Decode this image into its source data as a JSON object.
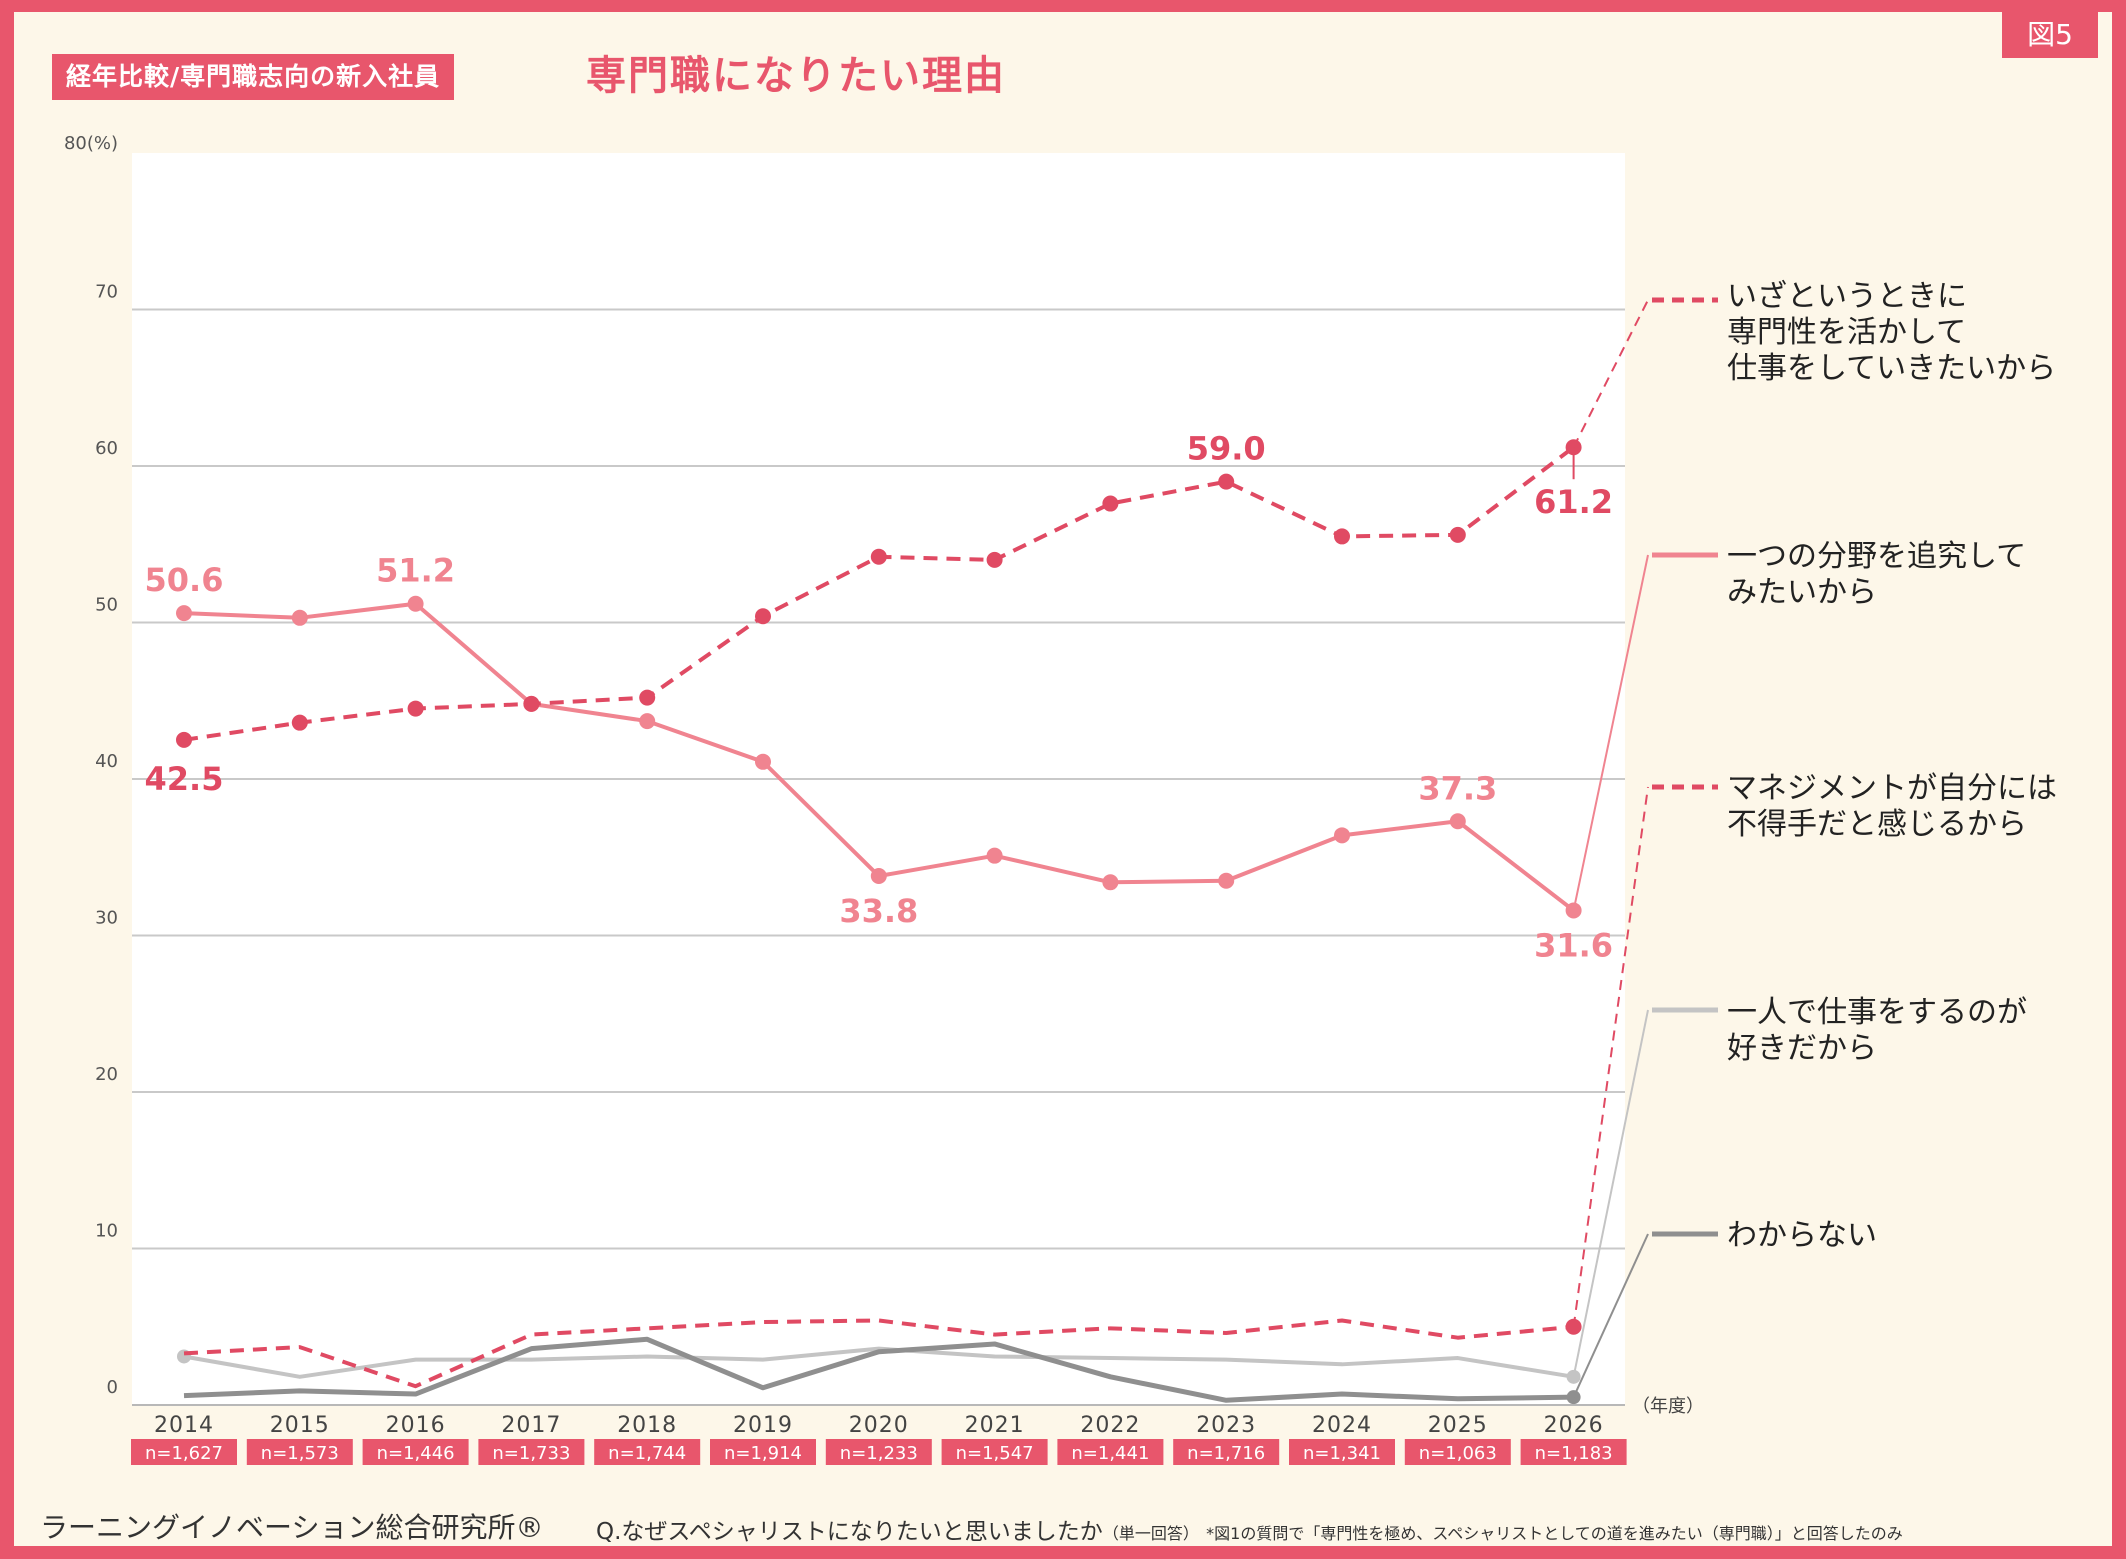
{
  "figure_label": "図5",
  "subtitle": "経年比較/専門職志向の新入社員",
  "title": "専門職になりたい理由",
  "footer": {
    "organization": "ラーニングイノベーション総合研究所®",
    "question": "Q.なぜスペシャリストになりたいと思いましたか",
    "question_note": "（単一回答）",
    "footnote": "*図1の質問で「専門性を極め、スペシャリストとしての道を進みたい（専門職）」と回答したのみ"
  },
  "colors": {
    "frame": "#e8566c",
    "background": "#fdf7e9",
    "plot_background": "#ffffff",
    "dark_pink": "#e04a63",
    "pink": "#f08490",
    "light_gray": "#c4c4c4",
    "dark_gray": "#8f8f8f"
  },
  "chart_data": {
    "type": "line",
    "y_unit_label": "80(%)",
    "x_unit_label": "（年度）",
    "ylim": [
      0,
      80
    ],
    "yticks": [
      0,
      10,
      20,
      30,
      40,
      50,
      60,
      70
    ],
    "grid": "horizontal",
    "legend": "right",
    "categories": [
      "2014",
      "2015",
      "2016",
      "2017",
      "2018",
      "2019",
      "2020",
      "2021",
      "2022",
      "2023",
      "2024",
      "2025",
      "2026"
    ],
    "sample_sizes": [
      "n=1,627",
      "n=1,573",
      "n=1,446",
      "n=1,733",
      "n=1,744",
      "n=1,914",
      "n=1,233",
      "n=1,547",
      "n=1,441",
      "n=1,716",
      "n=1,341",
      "n=1,063",
      "n=1,183"
    ],
    "series": [
      {
        "name": "いざというときに専門性を活かして仕事をしていきたいから",
        "legend_lines": [
          "いざというときに",
          "専門性を活かして",
          "仕事をしていきたいから"
        ],
        "color": "#e04a63",
        "style": "dashed",
        "values": [
          42.5,
          43.6,
          44.5,
          44.8,
          45.2,
          50.4,
          54.2,
          54.0,
          57.6,
          59.0,
          55.5,
          55.6,
          61.2
        ]
      },
      {
        "name": "一つの分野を追究してみたいから",
        "legend_lines": [
          "一つの分野を追究して",
          "みたいから"
        ],
        "color": "#f08490",
        "style": "solid",
        "values": [
          50.6,
          50.3,
          51.2,
          44.8,
          43.7,
          41.1,
          33.8,
          35.1,
          33.4,
          33.5,
          36.4,
          37.3,
          31.6
        ]
      },
      {
        "name": "マネジメントが自分には不得手だと感じるから",
        "legend_lines": [
          "マネジメントが自分には",
          "不得手だと感じるから"
        ],
        "color": "#e04a63",
        "style": "dashed",
        "values": [
          3.3,
          3.7,
          1.2,
          4.5,
          4.9,
          5.3,
          5.4,
          4.5,
          4.9,
          4.6,
          5.4,
          4.3,
          5.0
        ]
      },
      {
        "name": "一人で仕事をするのが好きだから",
        "legend_lines": [
          "一人で仕事をするのが",
          "好きだから"
        ],
        "color": "#c4c4c4",
        "style": "solid",
        "values": [
          3.1,
          1.8,
          2.9,
          2.9,
          3.1,
          2.9,
          3.6,
          3.1,
          3.0,
          2.9,
          2.6,
          3.0,
          1.8
        ]
      },
      {
        "name": "わからない",
        "legend_lines": [
          "わからない"
        ],
        "color": "#8f8f8f",
        "style": "solid",
        "values": [
          0.6,
          0.9,
          0.7,
          3.6,
          4.2,
          1.1,
          3.4,
          3.9,
          1.8,
          0.3,
          0.7,
          0.4,
          0.5
        ]
      }
    ],
    "data_labels": [
      {
        "series": 0,
        "index": 0,
        "text": "42.5"
      },
      {
        "series": 0,
        "index": 9,
        "text": "59.0"
      },
      {
        "series": 0,
        "index": 12,
        "text": "61.2"
      },
      {
        "series": 1,
        "index": 0,
        "text": "50.6"
      },
      {
        "series": 1,
        "index": 2,
        "text": "51.2"
      },
      {
        "series": 1,
        "index": 6,
        "text": "33.8"
      },
      {
        "series": 1,
        "index": 11,
        "text": "37.3"
      },
      {
        "series": 1,
        "index": 12,
        "text": "31.6"
      }
    ]
  }
}
